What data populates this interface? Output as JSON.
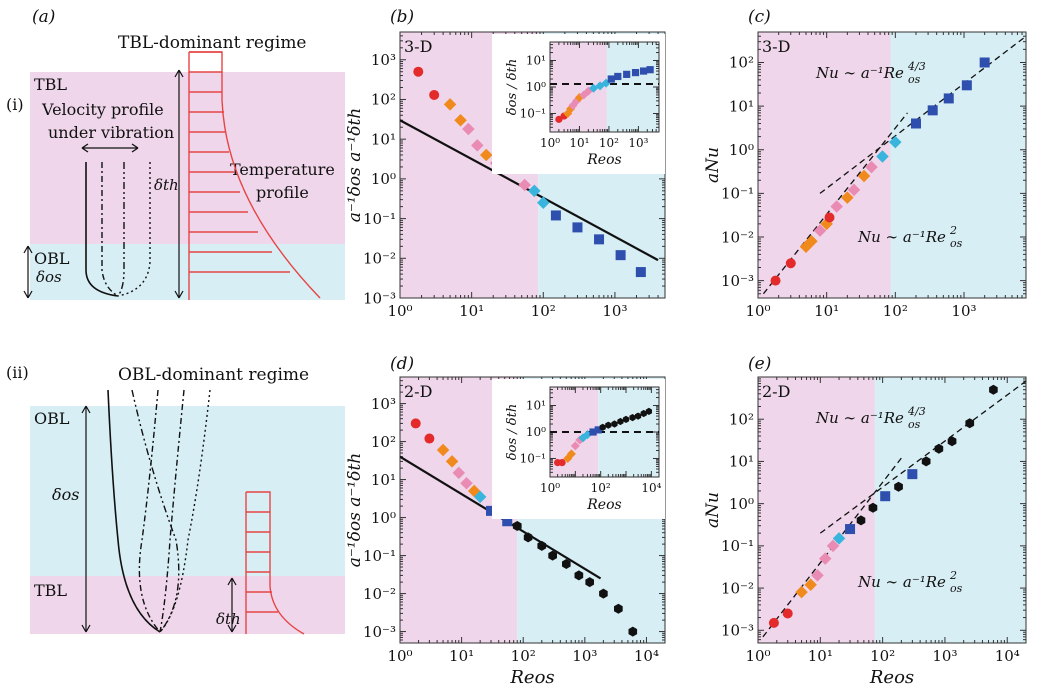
{
  "panel_labels": {
    "a": "(a)",
    "b": "(b)",
    "c": "(c)",
    "d": "(d)",
    "e": "(e)"
  },
  "schematic_i": {
    "roman": "(i)",
    "regime": "TBL-dominant regime",
    "tbl": "TBL",
    "obl": "OBL",
    "velocity_label_1": "Velocity profile",
    "velocity_label_2": "under vibration",
    "temperature_label_1": "Temperature",
    "temperature_label_2": "profile",
    "delta_th": "δth",
    "delta_os": "δos"
  },
  "schematic_ii": {
    "roman": "(ii)",
    "regime": "OBL-dominant regime",
    "tbl": "TBL",
    "obl": "OBL",
    "delta_th": "δth",
    "delta_os": "δos"
  },
  "colors": {
    "pink_region": "#efd6ea",
    "blue_region": "#d7eef4",
    "profile_red": "#e64545",
    "series": [
      "#e32b2b",
      "#f08a1c",
      "#e98bb3",
      "#39b4dc",
      "#2f4fae",
      "#111111"
    ]
  },
  "chart_data": [
    {
      "id": "b",
      "type": "scatter",
      "tag": "3-D",
      "xlabel": "",
      "ylabel": "a⁻¹δos   a⁻¹δth",
      "xlim": [
        1,
        5000
      ],
      "ylim": [
        0.001,
        5000
      ],
      "log": true,
      "x_ticks": [
        "10⁰",
        "10¹",
        "10²",
        "10³"
      ],
      "y_ticks": [
        "10⁻³",
        "10⁻²",
        "10⁻¹",
        "10⁰",
        "10¹",
        "10²",
        "10³"
      ],
      "regime_split_x": 85,
      "points": [
        [
          1.8,
          500,
          0
        ],
        [
          3,
          130,
          0
        ],
        [
          5,
          75,
          1
        ],
        [
          7,
          30,
          1
        ],
        [
          9,
          18,
          2
        ],
        [
          12,
          7,
          2
        ],
        [
          16,
          4,
          1
        ],
        [
          22,
          2.5,
          2
        ],
        [
          55,
          0.7,
          2
        ],
        [
          75,
          0.5,
          3
        ],
        [
          100,
          0.25,
          3
        ],
        [
          150,
          0.12,
          4
        ],
        [
          300,
          0.06,
          4
        ],
        [
          600,
          0.03,
          4
        ],
        [
          1200,
          0.012,
          4
        ],
        [
          2300,
          0.0045,
          4
        ]
      ],
      "lines": [
        {
          "x": [
            1,
            4000
          ],
          "y": [
            30,
            0.009
          ],
          "style": "solid"
        }
      ],
      "inset": {
        "ylabel": "δos / δth",
        "xlabel": "Reos",
        "xlim": [
          1,
          5000
        ],
        "ylim": [
          0.02,
          50
        ],
        "log": true,
        "x_ticks": [
          "10⁰",
          "10¹",
          "10²",
          "10³"
        ],
        "y_ticks": [
          "10⁻¹",
          "10⁰",
          "10¹"
        ],
        "dashed_y": 1.3,
        "points": [
          [
            2,
            0.06,
            0
          ],
          [
            3,
            0.08,
            0
          ],
          [
            4,
            0.1,
            1
          ],
          [
            5,
            0.15,
            1
          ],
          [
            6,
            0.2,
            2
          ],
          [
            8,
            0.3,
            2
          ],
          [
            10,
            0.4,
            1
          ],
          [
            14,
            0.5,
            2
          ],
          [
            20,
            0.7,
            2
          ],
          [
            30,
            0.9,
            3
          ],
          [
            50,
            1.1,
            3
          ],
          [
            80,
            1.4,
            3
          ],
          [
            120,
            2,
            4
          ],
          [
            200,
            2.5,
            4
          ],
          [
            400,
            3,
            4
          ],
          [
            800,
            3.5,
            4
          ],
          [
            1500,
            4,
            4
          ],
          [
            2500,
            4.5,
            4
          ]
        ]
      }
    },
    {
      "id": "c",
      "type": "scatter",
      "tag": "3-D",
      "xlabel": "",
      "ylabel": "aNu",
      "xlim": [
        1,
        8000
      ],
      "ylim": [
        0.0004,
        500
      ],
      "log": true,
      "x_ticks": [
        "10⁰",
        "10¹",
        "10²",
        "10³"
      ],
      "y_ticks": [
        "10⁻³",
        "10⁻²",
        "10⁻¹",
        "10⁰",
        "10¹",
        "10²"
      ],
      "regime_split_x": 85,
      "annotations": [
        "Nu ∼ a⁻¹Re",
        "Nu ∼ a⁻¹Re"
      ],
      "points": [
        [
          1.8,
          0.001,
          0
        ],
        [
          3,
          0.0025,
          0
        ],
        [
          5,
          0.006,
          1
        ],
        [
          6,
          0.008,
          1
        ],
        [
          8,
          0.014,
          2
        ],
        [
          10,
          0.02,
          1
        ],
        [
          11,
          0.028,
          0
        ],
        [
          14,
          0.05,
          2
        ],
        [
          20,
          0.08,
          1
        ],
        [
          25,
          0.12,
          2
        ],
        [
          35,
          0.25,
          1
        ],
        [
          45,
          0.4,
          2
        ],
        [
          65,
          0.7,
          3
        ],
        [
          100,
          1.5,
          3
        ],
        [
          200,
          4,
          4
        ],
        [
          350,
          8,
          4
        ],
        [
          600,
          15,
          4
        ],
        [
          1100,
          30,
          4
        ],
        [
          2000,
          100,
          4
        ]
      ],
      "lines": [
        {
          "x": [
            1.2,
            150
          ],
          "y": [
            0.0005,
            7
          ],
          "style": "dashed"
        },
        {
          "x": [
            8,
            8000
          ],
          "y": [
            0.1,
            400
          ],
          "style": "dashed"
        }
      ]
    },
    {
      "id": "d",
      "type": "scatter",
      "tag": "2-D",
      "xlabel": "Reos",
      "ylabel": "a⁻¹δos   a⁻¹δth",
      "xlim": [
        1,
        20000
      ],
      "ylim": [
        0.0005,
        5000
      ],
      "log": true,
      "x_ticks": [
        "10⁰",
        "10¹",
        "10²",
        "10³",
        "10⁴"
      ],
      "y_ticks": [
        "10⁻³",
        "10⁻²",
        "10⁻¹",
        "10⁰",
        "10¹",
        "10²",
        "10³"
      ],
      "regime_split_x": 80,
      "points": [
        [
          1.8,
          300,
          0
        ],
        [
          3,
          120,
          0
        ],
        [
          5,
          60,
          1
        ],
        [
          7,
          30,
          1
        ],
        [
          9,
          15,
          2
        ],
        [
          12,
          8,
          2
        ],
        [
          16,
          5,
          1
        ],
        [
          20,
          3.5,
          3
        ],
        [
          30,
          1.5,
          4
        ],
        [
          55,
          0.8,
          4
        ],
        [
          80,
          0.6,
          5
        ],
        [
          120,
          0.3,
          5
        ],
        [
          200,
          0.18,
          5
        ],
        [
          300,
          0.1,
          5
        ],
        [
          500,
          0.06,
          5
        ],
        [
          800,
          0.03,
          5
        ],
        [
          1200,
          0.02,
          5
        ],
        [
          2000,
          0.01,
          5
        ],
        [
          3500,
          0.004,
          5
        ],
        [
          6000,
          0.001,
          5
        ]
      ],
      "lines": [
        {
          "x": [
            1,
            1800
          ],
          "y": [
            40,
            0.025
          ],
          "style": "solid"
        }
      ],
      "inset": {
        "ylabel": "δos / δth",
        "xlabel": "Reos",
        "xlim": [
          1,
          20000
        ],
        "ylim": [
          0.02,
          50
        ],
        "log": true,
        "x_ticks": [
          "10⁰",
          "10²",
          "10⁴"
        ],
        "y_ticks": [
          "10⁻¹",
          "10⁰",
          "10¹"
        ],
        "dashed_y": 1.0,
        "points": [
          [
            2,
            0.07,
            0
          ],
          [
            3,
            0.07,
            0
          ],
          [
            5,
            0.1,
            1
          ],
          [
            7,
            0.15,
            1
          ],
          [
            10,
            0.3,
            2
          ],
          [
            15,
            0.5,
            2
          ],
          [
            20,
            0.6,
            3
          ],
          [
            30,
            0.8,
            3
          ],
          [
            50,
            1.0,
            4
          ],
          [
            80,
            1.2,
            4
          ],
          [
            120,
            1.5,
            5
          ],
          [
            200,
            1.8,
            5
          ],
          [
            350,
            2,
            5
          ],
          [
            600,
            2.5,
            5
          ],
          [
            1000,
            3,
            5
          ],
          [
            1800,
            3.5,
            5
          ],
          [
            3000,
            4,
            5
          ],
          [
            5000,
            5,
            5
          ],
          [
            8000,
            6,
            5
          ]
        ]
      }
    },
    {
      "id": "e",
      "type": "scatter",
      "tag": "2-D",
      "xlabel": "Reos",
      "ylabel": "aNu",
      "xlim": [
        1,
        20000
      ],
      "ylim": [
        0.0005,
        1000
      ],
      "log": true,
      "x_ticks": [
        "10⁰",
        "10¹",
        "10²",
        "10³",
        "10⁴"
      ],
      "y_ticks": [
        "10⁻³",
        "10⁻²",
        "10⁻¹",
        "10⁰",
        "10¹",
        "10²"
      ],
      "regime_split_x": 75,
      "annotations": [
        "Nu ∼ a⁻¹Re",
        "Nu ∼ a⁻¹Re"
      ],
      "points": [
        [
          1.8,
          0.0015,
          0
        ],
        [
          3,
          0.0025,
          0
        ],
        [
          5,
          0.008,
          1
        ],
        [
          7,
          0.012,
          1
        ],
        [
          9,
          0.02,
          2
        ],
        [
          12,
          0.05,
          2
        ],
        [
          16,
          0.1,
          2
        ],
        [
          20,
          0.15,
          3
        ],
        [
          30,
          0.25,
          4
        ],
        [
          45,
          0.4,
          5
        ],
        [
          70,
          0.8,
          5
        ],
        [
          110,
          1.5,
          4
        ],
        [
          180,
          2.5,
          5
        ],
        [
          300,
          5,
          4
        ],
        [
          500,
          10,
          5
        ],
        [
          800,
          20,
          5
        ],
        [
          1300,
          30,
          5
        ],
        [
          2500,
          80,
          5
        ],
        [
          6000,
          500,
          5
        ]
      ],
      "lines": [
        {
          "x": [
            1.2,
            200
          ],
          "y": [
            0.0007,
            12
          ],
          "style": "dashed"
        },
        {
          "x": [
            10,
            20000
          ],
          "y": [
            0.2,
            800
          ],
          "style": "dashed"
        }
      ]
    }
  ]
}
